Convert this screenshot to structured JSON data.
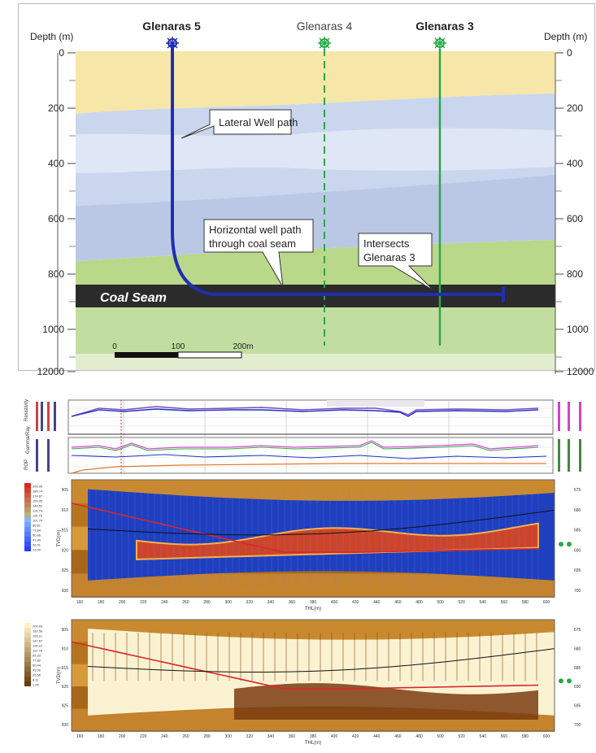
{
  "wells": [
    {
      "name": "Glenaras 5",
      "bold": true,
      "color": "#1f2fb3"
    },
    {
      "name": "Glenaras 4",
      "bold": false,
      "color": "#2aa845"
    },
    {
      "name": "Glenaras 3",
      "bold": true,
      "color": "#2aa845"
    }
  ],
  "depth_axis": {
    "label_left": "Depth (m)",
    "label_right": "Depth (m)",
    "ticks": [
      "0",
      "200",
      "400",
      "600",
      "800",
      "1000",
      "12000"
    ]
  },
  "callouts": {
    "lateral": "Lateral Well path",
    "horizontal_line1": "Horizontal well path",
    "horizontal_line2": "through coal seam",
    "intersects_line1": "Intersects",
    "intersects_line2": "Glenaras 3"
  },
  "coal_seam_label": "Coal Seam",
  "scale_bar": {
    "labels": [
      "0",
      "100",
      "200m"
    ]
  },
  "log_panel": {
    "track_titles": [
      "Resistivity",
      "Gamma/Ray",
      "ROP"
    ]
  },
  "section_panels": [
    {
      "legend": [
        "200.00",
        "189.74",
        "174.87",
        "159.95",
        "146.52",
        "131.73",
        "116.76",
        "101.79",
        "86.81",
        "71.84",
        "56.86",
        "41.89",
        "26.91",
        "12.00"
      ],
      "y_label": "TVD(m)",
      "y_ticks": [
        "905",
        "910",
        "915",
        "920",
        "925",
        "930"
      ],
      "right_ticks": [
        "675",
        "680",
        "685",
        "690",
        "695",
        "700"
      ],
      "x_label": "THL(m)",
      "x_ticks": [
        "160",
        "180",
        "200",
        "220",
        "240",
        "260",
        "280",
        "300",
        "320",
        "340",
        "360",
        "380",
        "400",
        "420",
        "440",
        "460",
        "480",
        "500",
        "520",
        "540",
        "560",
        "580",
        "600"
      ]
    },
    {
      "legend": [
        "200.00",
        "182.56",
        "165.11",
        "147.67",
        "130.22",
        "112.78",
        "95.33",
        "77.89",
        "60.44",
        "43.00",
        "25.56",
        "8.11",
        "1.00"
      ],
      "y_label": "TVD(m)",
      "y_ticks": [
        "905",
        "910",
        "915",
        "920",
        "925",
        "930"
      ],
      "right_ticks": [
        "675",
        "680",
        "685",
        "690",
        "695",
        "700"
      ],
      "x_label": "THL(m)",
      "x_ticks": [
        "160",
        "180",
        "200",
        "220",
        "240",
        "260",
        "280",
        "300",
        "320",
        "340",
        "360",
        "380",
        "400",
        "420",
        "440",
        "460",
        "480",
        "500",
        "520",
        "540",
        "560",
        "580",
        "600"
      ]
    }
  ]
}
